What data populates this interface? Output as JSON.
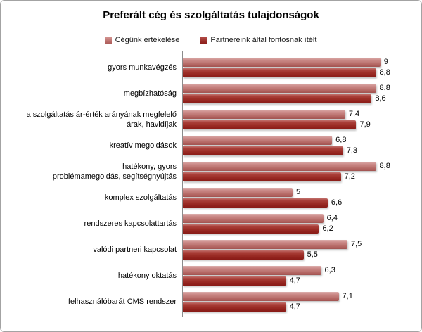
{
  "chart_data": {
    "type": "bar",
    "orientation": "horizontal",
    "title": "Preferált cég és szolgáltatás tulajdonságok",
    "categories": [
      "gyors munkavégzés",
      "megbízhatóság",
      "a szolgáltatás  ár-érték arányának  megfelelő\nárak, havidíjak",
      "kreatív megoldások",
      "hatékony, gyors\nproblémamegoldás, segítségnyújtás",
      "komplex szolgáltatás",
      "rendszeres kapcsolattartás",
      "valódi partneri kapcsolat",
      "hatékony oktatás",
      "felhasználóbarát CMS rendszer"
    ],
    "series": [
      {
        "name": "Cégünk értékelése",
        "color": "#C0716F",
        "values": [
          9,
          8.8,
          7.4,
          6.8,
          8.8,
          5,
          6.4,
          7.5,
          6.3,
          7.1
        ],
        "value_labels": [
          "9",
          "8,8",
          "7,4",
          "6,8",
          "8,8",
          "5",
          "6,4",
          "7,5",
          "6,3",
          "7,1"
        ]
      },
      {
        "name": "Partnereink által fontosnak ítélt",
        "color": "#9A2B27",
        "values": [
          8.8,
          8.6,
          7.9,
          7.3,
          7.2,
          6.6,
          6.2,
          5.5,
          4.7,
          4.7
        ],
        "value_labels": [
          "8,8",
          "8,6",
          "7,9",
          "7,3",
          "7,2",
          "6,6",
          "6,2",
          "5,5",
          "4,7",
          "4,7"
        ]
      }
    ],
    "xlim": [
      0,
      10
    ],
    "grid": false,
    "legend_position": "top",
    "value_labels_shown": true,
    "axis_line_color": "#8C8C8C",
    "frame_border_color": "#A3A3A3"
  }
}
